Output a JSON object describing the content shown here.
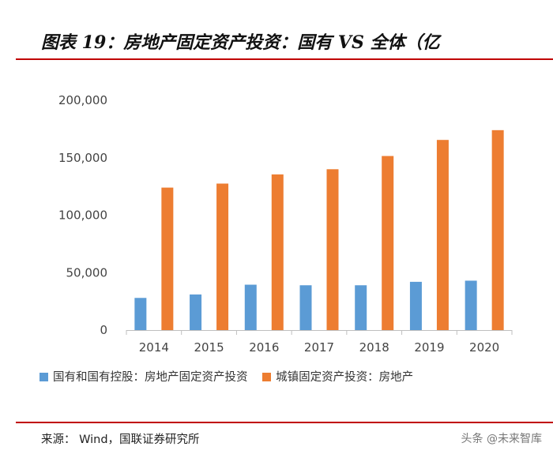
{
  "title": "图表 19：房地产固定资产投资：国有 VS 全体（亿",
  "colors": {
    "accent_red": "#c00000",
    "series_blue": "#5b9bd5",
    "series_orange": "#ed7d31"
  },
  "chart_data": {
    "type": "bar",
    "title": "图表 19：房地产固定资产投资：国有 VS 全体（亿",
    "xlabel": "",
    "ylabel": "",
    "ylim": [
      0,
      200000
    ],
    "yticks": [
      0,
      50000,
      100000,
      150000,
      200000
    ],
    "ytick_labels": [
      "0",
      "50,000",
      "100,000",
      "150,000",
      "200,000"
    ],
    "grid": false,
    "legend_position": "bottom",
    "categories": [
      "2014",
      "2015",
      "2016",
      "2017",
      "2018",
      "2019",
      "2020"
    ],
    "series": [
      {
        "name": "国有和国有控股：房地产固定资产投资",
        "color": "#5b9bd5",
        "values": [
          28000,
          31000,
          39500,
          39000,
          39000,
          42000,
          43000
        ]
      },
      {
        "name": "城镇固定资产投资：房地产",
        "color": "#ed7d31",
        "values": [
          124000,
          127500,
          135500,
          140000,
          151500,
          165500,
          174000
        ]
      }
    ]
  },
  "footer": {
    "source": "来源：  Wind，国联证券研究所",
    "watermark": "头条 @未来智库"
  }
}
